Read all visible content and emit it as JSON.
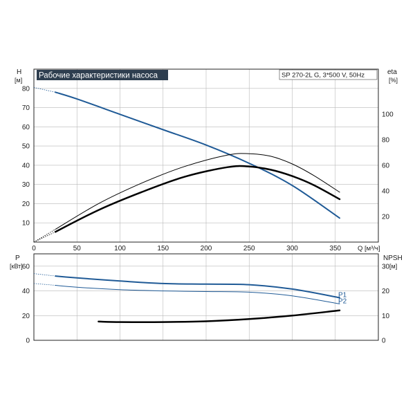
{
  "chart_data": [
    {
      "type": "line",
      "title": "Рабочие характеристики насоса",
      "model_label": "SP 270-2L G, 3*500 V, 50Hz",
      "left_axis": {
        "name": "H",
        "unit": "[м]",
        "range": [
          0,
          90
        ],
        "ticks": [
          "10",
          "20",
          "30",
          "40",
          "50",
          "60",
          "70",
          "80"
        ]
      },
      "right_axis": {
        "name": "eta",
        "unit": "[%]",
        "range": [
          0,
          135
        ],
        "ticks": [
          "20",
          "40",
          "60",
          "80",
          "100"
        ]
      },
      "x_axis": {
        "label": "Q [м³/ч]",
        "range": [
          0,
          400
        ],
        "ticks": [
          "0",
          "50",
          "100",
          "150",
          "200",
          "250",
          "300",
          "350"
        ]
      },
      "grid": true,
      "series": [
        {
          "axis": "left",
          "color": "#1f5a96",
          "width": 2,
          "dashed_until": 20,
          "x": [
            0,
            25,
            50,
            100,
            150,
            200,
            250,
            300,
            355
          ],
          "y": [
            80.5,
            78,
            74.5,
            66.5,
            58.5,
            50.5,
            41,
            29.5,
            12.5
          ]
        },
        {
          "axis": "right",
          "color": "#000000",
          "width": 1,
          "dashed_until": 20,
          "x": [
            0,
            25,
            75,
            125,
            175,
            225,
            250,
            275,
            300,
            325,
            355
          ],
          "y": [
            0,
            10,
            30,
            46,
            59,
            68,
            69,
            67,
            61,
            52,
            39
          ]
        },
        {
          "axis": "right",
          "color": "#000000",
          "width": 2.5,
          "dashed_until": 20,
          "x": [
            0,
            25,
            75,
            125,
            175,
            225,
            250,
            275,
            300,
            325,
            355
          ],
          "y": [
            0,
            8,
            25,
            39,
            51,
            58.5,
            59,
            56.5,
            51.5,
            44.5,
            33.5
          ]
        }
      ]
    },
    {
      "type": "line",
      "left_axis": {
        "name": "P",
        "unit": "[кВт]",
        "range": [
          0,
          70
        ],
        "ticks": [
          "0",
          "20",
          "40",
          "60"
        ]
      },
      "right_axis": {
        "name": "NPSH",
        "unit": "[м]",
        "range": [
          0,
          35
        ],
        "ticks": [
          "0",
          "10",
          "20",
          "30"
        ]
      },
      "x_range": [
        0,
        400
      ],
      "grid": true,
      "series": [
        {
          "name": "P1",
          "axis": "left",
          "color": "#1f5a96",
          "width": 2,
          "dashed_until": 25,
          "x": [
            0,
            25,
            50,
            100,
            150,
            200,
            250,
            300,
            355
          ],
          "y": [
            54,
            52,
            50.5,
            48,
            46,
            45.5,
            45,
            41.5,
            34.5
          ]
        },
        {
          "name": "P2",
          "axis": "left",
          "color": "#1f5a96",
          "width": 1,
          "dashed_until": 25,
          "x": [
            0,
            25,
            50,
            100,
            150,
            200,
            250,
            300,
            355
          ],
          "y": [
            46,
            44.5,
            43,
            41,
            40,
            39.5,
            39,
            36,
            29.5
          ]
        },
        {
          "axis": "right",
          "color": "#000000",
          "width": 2.5,
          "dashed_until": null,
          "x": [
            75,
            100,
            150,
            200,
            250,
            300,
            355
          ],
          "y": [
            7.6,
            7.4,
            7.4,
            7.7,
            8.6,
            10,
            12.1
          ]
        }
      ]
    }
  ]
}
